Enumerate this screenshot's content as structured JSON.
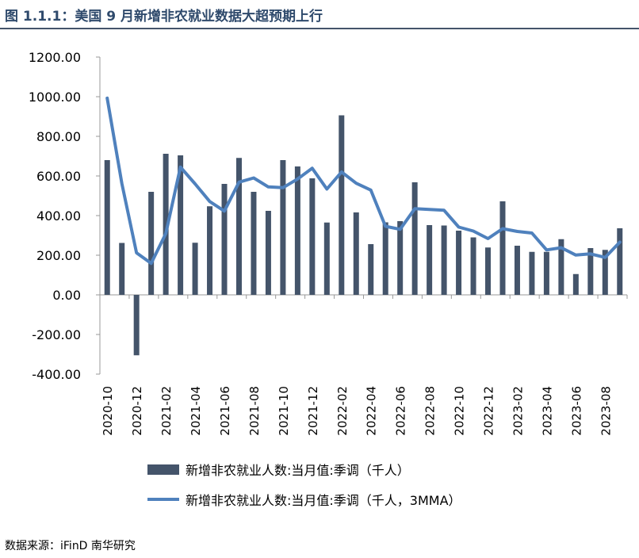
{
  "title": "图 1.1.1：美国 9 月新增非农就业数据大超预期上行",
  "source": "数据来源：iFinD 南华研究",
  "colors": {
    "bar": "#44546a",
    "line": "#4f81bd",
    "title": "#2f4a6c",
    "axis": "#999999"
  },
  "chart_data": {
    "type": "bar",
    "title": "图 1.1.1：美国 9 月新增非农就业数据大超预期上行",
    "ylim": [
      -400,
      1200
    ],
    "yticks": [
      -400,
      -200,
      0,
      200,
      400,
      600,
      800,
      1000,
      1200
    ],
    "ytick_labels": [
      "-400.00",
      "-200.00",
      "0.00",
      "200.00",
      "400.00",
      "600.00",
      "800.00",
      "1000.00",
      "1200.00"
    ],
    "grid": false,
    "legend_position": "bottom",
    "categories": [
      "2020-10",
      "2020-11",
      "2020-12",
      "2021-01",
      "2021-02",
      "2021-03",
      "2021-04",
      "2021-05",
      "2021-06",
      "2021-07",
      "2021-08",
      "2021-09",
      "2021-10",
      "2021-11",
      "2021-12",
      "2022-01",
      "2022-02",
      "2022-03",
      "2022-04",
      "2022-05",
      "2022-06",
      "2022-07",
      "2022-08",
      "2022-09",
      "2022-10",
      "2022-11",
      "2022-12",
      "2023-01",
      "2023-02",
      "2023-03",
      "2023-04",
      "2023-05",
      "2023-06",
      "2023-07",
      "2023-08",
      "2023-09"
    ],
    "xtick_labels": [
      "2020-10",
      "2020-12",
      "2021-02",
      "2021-04",
      "2021-06",
      "2021-08",
      "2021-10",
      "2021-12",
      "2022-02",
      "2022-04",
      "2022-06",
      "2022-08",
      "2022-10",
      "2022-12",
      "2023-02",
      "2023-04",
      "2023-06",
      "2023-08"
    ],
    "series": [
      {
        "name": "新增非农就业人数:当月值:季调（千人）",
        "type": "bar",
        "values": [
          680,
          262,
          -305,
          520,
          712,
          704,
          263,
          447,
          560,
          691,
          520,
          424,
          680,
          648,
          588,
          365,
          906,
          416,
          256,
          366,
          372,
          568,
          352,
          350,
          324,
          290,
          239,
          472,
          248,
          217,
          217,
          281,
          105,
          236,
          227,
          336
        ]
      },
      {
        "name": "新增非农就业人数:当月值:季调（千人，3MMA）",
        "type": "line",
        "values": [
          993,
          562,
          212,
          159,
          309,
          645,
          560,
          471,
          423,
          569,
          590,
          545,
          541,
          585,
          639,
          534,
          620,
          563,
          529,
          346,
          331,
          435,
          431,
          427,
          342,
          322,
          284,
          334,
          320,
          312,
          227,
          238,
          201,
          207,
          189,
          266
        ]
      }
    ]
  }
}
